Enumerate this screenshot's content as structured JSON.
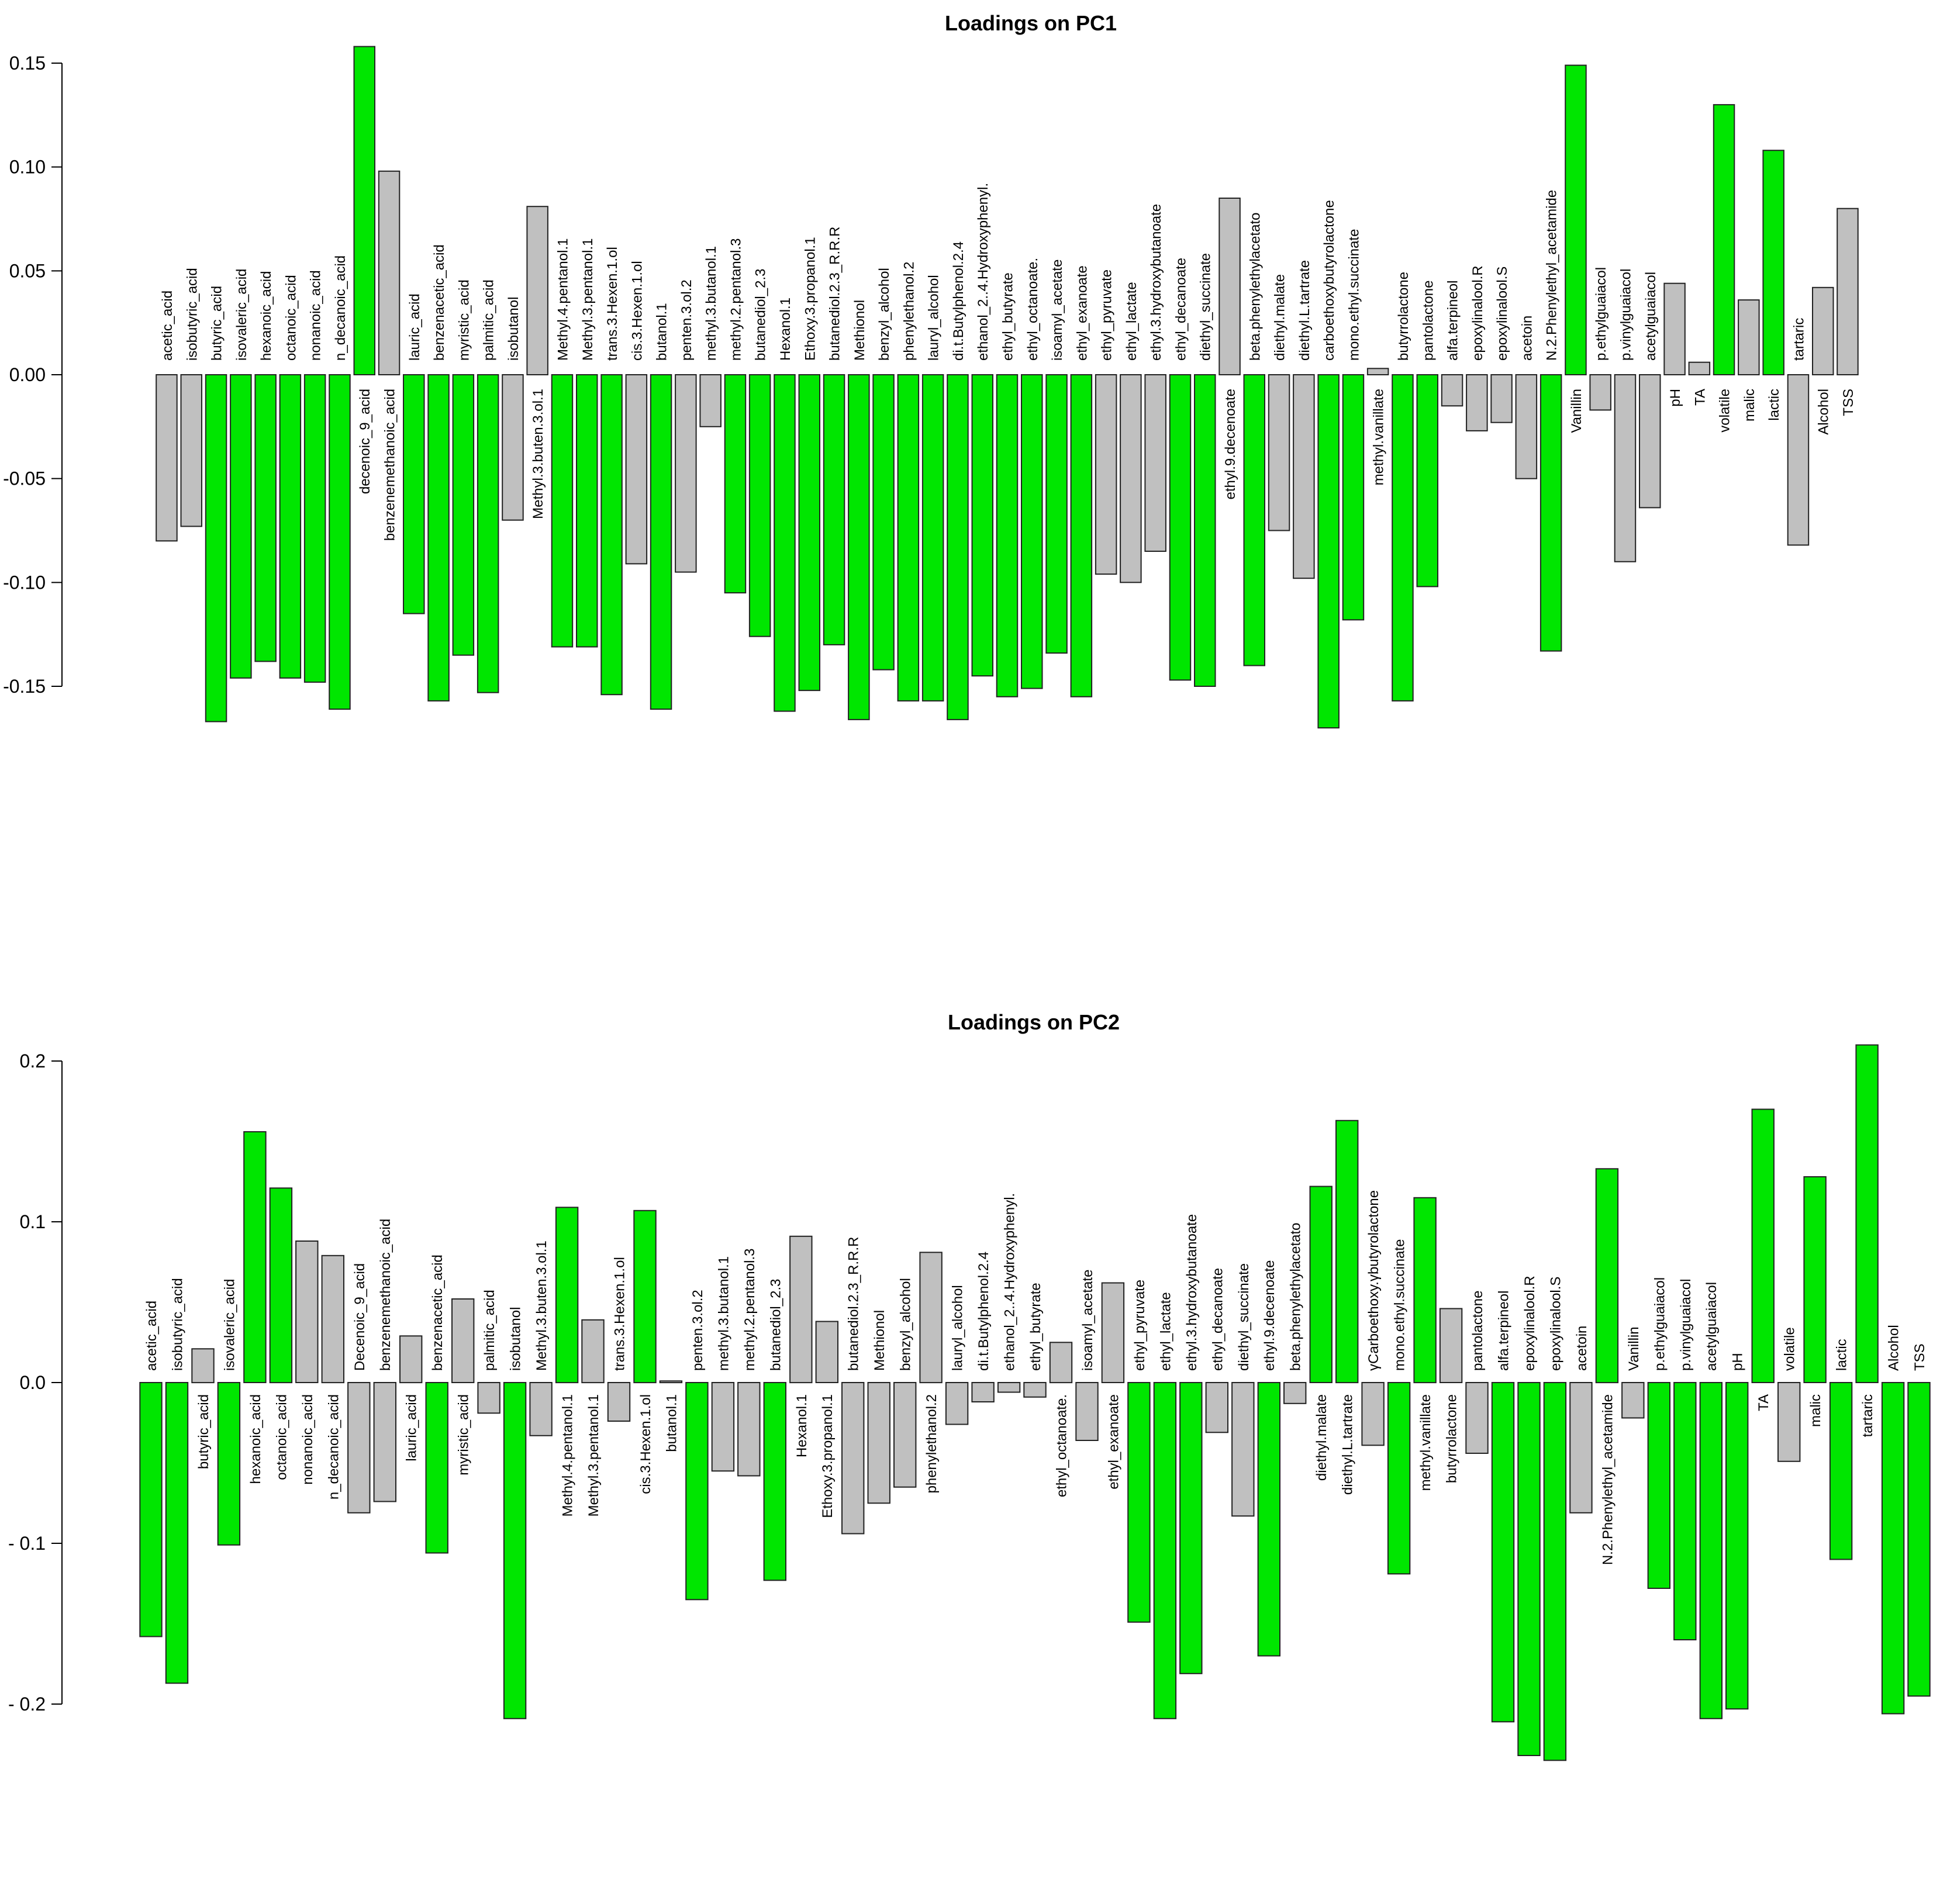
{
  "colors": {
    "highlight": "#00e600",
    "normal": "#c0c0c0",
    "stroke": "#222222"
  },
  "chart_data": [
    {
      "type": "bar",
      "title": "Loadings on PC1",
      "ylim": [
        -0.16,
        0.16
      ],
      "yticks": [
        0.15,
        0.1,
        0.05,
        0.0,
        -0.05,
        -0.1,
        -0.15
      ],
      "ytick_labels": [
        "0.15",
        "0.10",
        "0.05",
        "0.00",
        "-0.05",
        "-0.10",
        "-0.15"
      ],
      "categories": [
        "acetic_acid",
        "isobutyric_acid",
        "butyric_acid",
        "isovaleric_acid",
        "hexanoic_acid",
        "octanoic_acid",
        "nonanoic_acid",
        "n_decanoic_acid",
        "decenoic_9_acid",
        "benzenemethanoic_acid",
        "lauric_acid",
        "benzenacetic_acid",
        "myristic_acid",
        "palmitic_acid",
        "isobutanol",
        "Methyl.3.buten.3.ol.1",
        "Methyl.4.pentanol.1",
        "Methyl.3.pentanol.1",
        "trans.3.Hexen.1.ol",
        "cis.3.Hexen.1.ol",
        "butanol.1",
        "penten.3.ol.2",
        "methyl.3.butanol.1",
        "methyl.2.pentanol.3",
        "butanediol_2.3",
        "Hexanol.1",
        "Ethoxy.3.propanol.1",
        "butanediol.2.3_R.R.R",
        "Methionol",
        "benzyl_alcohol",
        "phenylethanol.2",
        "lauryl_alcohol",
        "di.t.Butylphenol.2.4",
        "ethanol_2..4.Hydroxyphenyl.",
        "ethyl_butyrate",
        "ethyl_octanoate.",
        "isoamyl_acetate",
        "ethyl_exanoate",
        "ethyl_pyruvate",
        "ethyl_lactate",
        "ethyl.3.hydroxybutanoate",
        "ethyl_decanoate",
        "diethyl_succinate",
        "ethyl.9.decenoate",
        "beta.phenylethylacetato",
        "diethyl.malate",
        "diethyl.L.tartrate",
        "carboethoxybutyrolactone",
        "mono.ethyl.succinate",
        "methyl.vanillate",
        "butyrrolactone",
        "pantolactone",
        "alfa.terpineol",
        "epoxylinalool.R",
        "epoxylinalool.S",
        "acetoin",
        "N.2.Phenylethyl_acetamide",
        "Vanillin",
        "p.ethylguaiacol",
        "p.vinylguaiacol",
        "acetylguaiacol",
        "pH",
        "TA",
        "volatile",
        "malic",
        "lactic",
        "tartaric",
        "Alcohol",
        "TSS"
      ],
      "values": [
        -0.08,
        -0.073,
        -0.167,
        -0.146,
        -0.138,
        -0.146,
        -0.148,
        -0.161,
        0.158,
        0.098,
        -0.115,
        -0.157,
        -0.135,
        -0.153,
        -0.07,
        0.081,
        -0.131,
        -0.131,
        -0.154,
        -0.091,
        -0.161,
        -0.095,
        -0.025,
        -0.105,
        -0.126,
        -0.162,
        -0.152,
        -0.13,
        -0.166,
        -0.142,
        -0.157,
        -0.157,
        -0.166,
        -0.145,
        -0.155,
        -0.151,
        -0.134,
        -0.155,
        -0.096,
        -0.1,
        -0.085,
        -0.147,
        -0.15,
        0.085,
        -0.14,
        -0.075,
        -0.098,
        -0.17,
        -0.118,
        0.003,
        -0.157,
        -0.102,
        -0.015,
        -0.027,
        -0.023,
        -0.05,
        -0.133,
        0.149,
        -0.017,
        -0.09,
        -0.064,
        0.044,
        0.006,
        0.13,
        0.036,
        0.108,
        -0.082,
        0.042,
        0.08
      ],
      "highlighted": [
        false,
        false,
        true,
        true,
        true,
        true,
        true,
        true,
        true,
        false,
        true,
        true,
        true,
        true,
        false,
        false,
        true,
        true,
        true,
        false,
        true,
        false,
        false,
        true,
        true,
        true,
        true,
        true,
        true,
        true,
        true,
        true,
        true,
        true,
        true,
        true,
        true,
        true,
        false,
        false,
        false,
        true,
        true,
        false,
        true,
        false,
        false,
        true,
        true,
        false,
        true,
        true,
        false,
        false,
        false,
        false,
        true,
        true,
        false,
        false,
        false,
        false,
        false,
        true,
        false,
        true,
        false,
        false,
        false
      ]
    },
    {
      "type": "bar",
      "title": "Loadings on PC2",
      "ylim": [
        -0.2,
        0.21
      ],
      "yticks": [
        0.2,
        0.1,
        0.0,
        -0.1,
        -0.2
      ],
      "ytick_labels": [
        "0.2",
        "0.1",
        "0.0",
        "- 0.1",
        "- 0.2"
      ],
      "categories": [
        "acetic_acid",
        "isobutyric_acid",
        "butyric_acid",
        "isovaleric_acid",
        "hexanoic_acid",
        "octanoic_acid",
        "nonanoic_acid",
        "n_decanoic_acid",
        "Decenoic_9_acid",
        "benzenemethanoic_acid",
        "lauric_acid",
        "benzenacetic_acid",
        "myristic_acid",
        "palmitic_acid",
        "isobutanol",
        "Methyl.3.buten.3.ol.1",
        "Methyl.4.pentanol.1",
        "Methyl.3.pentanol.1",
        "trans.3.Hexen.1.ol",
        "cis.3.Hexen.1.ol",
        "butanol.1",
        "penten.3.ol.2",
        "methyl.3.butanol.1",
        "methyl.2.pentanol.3",
        "butanediol_2.3",
        "Hexanol.1",
        "Ethoxy.3.propanol.1",
        "butanediol.2.3_R.R.R",
        "Methionol",
        "benzyl_alcohol",
        "phenylethanol.2",
        "lauryl_alcohol",
        "di.t.Butylphenol.2.4",
        "ethanol_2..4.Hydroxyphenyl.",
        "ethyl_butyrate",
        "ethyl_octanoate.",
        "isoamyl_acetate",
        "ethyl_exanoate",
        "ethyl_pyruvate",
        "ethyl_lactate",
        "ethyl.3.hydroxybutanoate",
        "ethyl_decanoate",
        "diethyl_succinate",
        "ethyl.9.decenoate",
        "beta.phenylethylacetato",
        "diethyl.malate",
        "diethyl.L.tartrate",
        "γCarboethoxy.γbutyrolactone",
        "mono.ethyl.succinate",
        "methyl.vanillate",
        "butyrrolactone",
        "pantolactone",
        "alfa.terpineol",
        "epoxylinalool.R",
        "epoxylinalool.S",
        "acetoin",
        "N.2.Phenylethyl_acetamide",
        "Vanillin",
        "p.ethylguaiacol",
        "p.vinylguaiacol",
        "acetylguaiacol",
        "pH",
        "TA",
        "volatile",
        "malic",
        "lactic",
        "tartaric",
        "Alcohol",
        "TSS"
      ],
      "values": [
        -0.158,
        -0.187,
        0.021,
        -0.101,
        0.156,
        0.121,
        0.088,
        0.079,
        -0.081,
        -0.074,
        0.029,
        -0.106,
        0.052,
        -0.019,
        -0.209,
        -0.033,
        0.109,
        0.039,
        -0.024,
        0.107,
        0.001,
        -0.135,
        -0.055,
        -0.058,
        -0.123,
        0.091,
        0.038,
        -0.094,
        -0.075,
        -0.065,
        0.081,
        -0.026,
        -0.012,
        -0.006,
        -0.009,
        0.025,
        -0.036,
        0.062,
        -0.149,
        -0.209,
        -0.181,
        -0.031,
        -0.083,
        -0.17,
        -0.013,
        0.122,
        0.163,
        -0.039,
        -0.119,
        0.115,
        0.046,
        -0.044,
        -0.211,
        -0.232,
        -0.235,
        -0.081,
        0.133,
        -0.022,
        -0.128,
        -0.16,
        -0.209,
        -0.203,
        0.17,
        -0.049,
        0.128,
        -0.11,
        0.21,
        -0.206,
        -0.195
      ],
      "highlighted": [
        true,
        true,
        false,
        true,
        true,
        true,
        false,
        false,
        false,
        false,
        false,
        true,
        false,
        false,
        true,
        false,
        true,
        false,
        false,
        true,
        false,
        true,
        false,
        false,
        true,
        false,
        false,
        false,
        false,
        false,
        false,
        false,
        false,
        false,
        false,
        false,
        false,
        false,
        true,
        true,
        true,
        false,
        false,
        true,
        false,
        true,
        true,
        false,
        true,
        true,
        false,
        false,
        true,
        true,
        true,
        false,
        true,
        false,
        true,
        true,
        true,
        true,
        true,
        false,
        true,
        true,
        true,
        true,
        true
      ]
    }
  ]
}
